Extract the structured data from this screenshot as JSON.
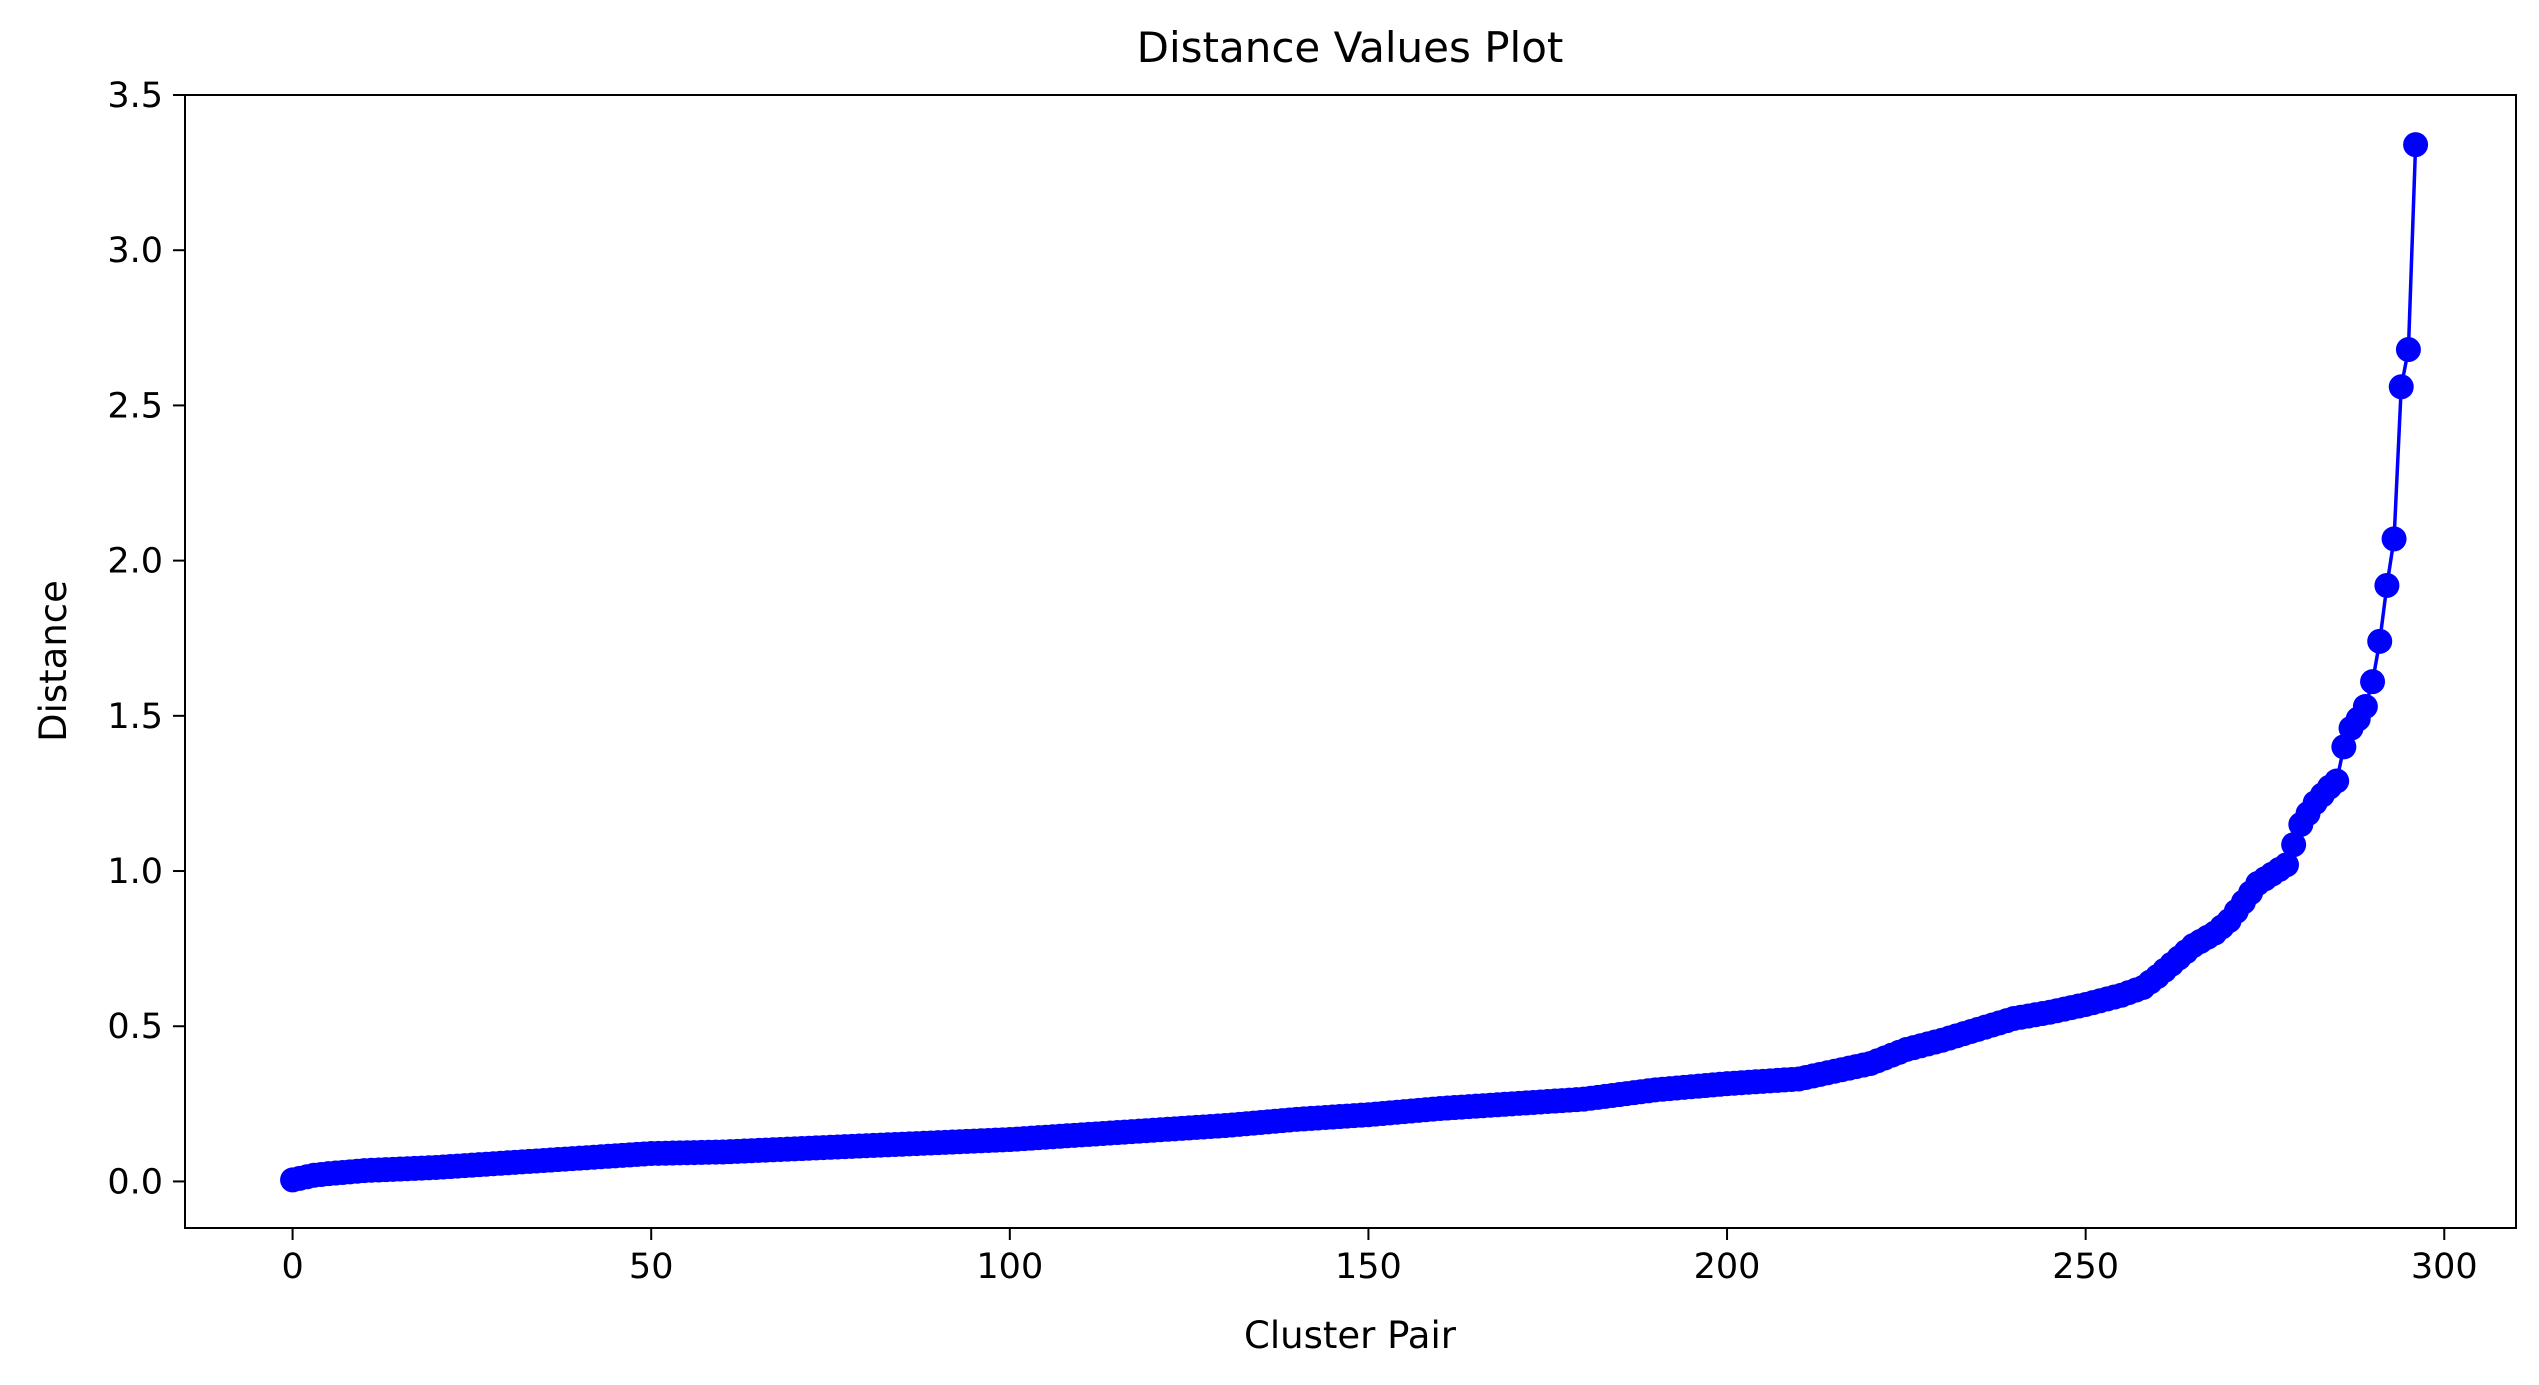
{
  "chart_data": {
    "type": "line",
    "title": "Distance Values Plot",
    "xlabel": "Cluster Pair",
    "ylabel": "Distance",
    "xlim": [
      -15,
      310
    ],
    "ylim": [
      -0.15,
      3.5
    ],
    "xticks": [
      0,
      50,
      100,
      150,
      200,
      250,
      300
    ],
    "xtick_labels": [
      "0",
      "50",
      "100",
      "150",
      "200",
      "250",
      "300"
    ],
    "yticks": [
      0.0,
      0.5,
      1.0,
      1.5,
      2.0,
      2.5,
      3.0,
      3.5
    ],
    "ytick_labels": [
      "0.0",
      "0.5",
      "1.0",
      "1.5",
      "2.0",
      "2.5",
      "3.0",
      "3.5"
    ],
    "grid": false,
    "line_color": "#0000ff",
    "marker": "circle",
    "anchors": [
      [
        0,
        0.005
      ],
      [
        1,
        0.01
      ],
      [
        2,
        0.015
      ],
      [
        3,
        0.02
      ],
      [
        5,
        0.025
      ],
      [
        10,
        0.035
      ],
      [
        20,
        0.045
      ],
      [
        30,
        0.06
      ],
      [
        40,
        0.075
      ],
      [
        50,
        0.09
      ],
      [
        60,
        0.095
      ],
      [
        70,
        0.105
      ],
      [
        80,
        0.115
      ],
      [
        90,
        0.125
      ],
      [
        100,
        0.135
      ],
      [
        110,
        0.15
      ],
      [
        120,
        0.165
      ],
      [
        130,
        0.18
      ],
      [
        140,
        0.2
      ],
      [
        150,
        0.215
      ],
      [
        160,
        0.235
      ],
      [
        170,
        0.25
      ],
      [
        180,
        0.265
      ],
      [
        190,
        0.295
      ],
      [
        200,
        0.315
      ],
      [
        210,
        0.33
      ],
      [
        215,
        0.355
      ],
      [
        220,
        0.38
      ],
      [
        225,
        0.425
      ],
      [
        230,
        0.455
      ],
      [
        235,
        0.49
      ],
      [
        240,
        0.525
      ],
      [
        245,
        0.545
      ],
      [
        250,
        0.57
      ],
      [
        255,
        0.6
      ],
      [
        258,
        0.625
      ],
      [
        260,
        0.66
      ],
      [
        262,
        0.7
      ],
      [
        265,
        0.76
      ],
      [
        268,
        0.8
      ],
      [
        270,
        0.84
      ],
      [
        272,
        0.9
      ],
      [
        274,
        0.96
      ],
      [
        276,
        0.99
      ],
      [
        278,
        1.02
      ],
      [
        280,
        1.15
      ],
      [
        282,
        1.22
      ],
      [
        284,
        1.27
      ],
      [
        285,
        1.29
      ],
      [
        286,
        1.4
      ],
      [
        287,
        1.46
      ],
      [
        288,
        1.49
      ],
      [
        289,
        1.53
      ],
      [
        290,
        1.61
      ],
      [
        291,
        1.74
      ],
      [
        292,
        1.92
      ],
      [
        293,
        2.07
      ],
      [
        294,
        2.56
      ],
      [
        295,
        2.68
      ],
      [
        296,
        3.34
      ]
    ]
  }
}
